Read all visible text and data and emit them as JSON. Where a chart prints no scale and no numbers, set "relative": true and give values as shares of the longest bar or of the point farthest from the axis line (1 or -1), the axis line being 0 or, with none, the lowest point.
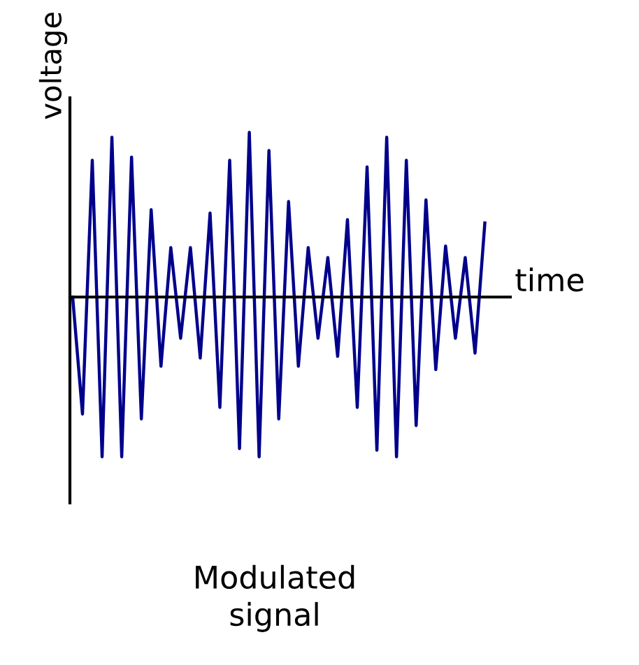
{
  "chart_data": {
    "type": "line",
    "title": "Modulated\nsignal",
    "xlabel": "time",
    "ylabel": "voltage",
    "relative": true,
    "categories": [
      null,
      null,
      null,
      null,
      null,
      null,
      null,
      null,
      null,
      null,
      null,
      null,
      null,
      null,
      null,
      null,
      null,
      null,
      null,
      null,
      null,
      null,
      null,
      null,
      null,
      null,
      null,
      null,
      null,
      null,
      null,
      null,
      null,
      null,
      null,
      null,
      null,
      null,
      null,
      null,
      null,
      null,
      null
    ],
    "series": [
      {
        "color": "#00008b",
        "values": [
          0,
          -0.71,
          0.83,
          -0.97,
          0.97,
          -0.97,
          0.85,
          -0.74,
          0.53,
          -0.42,
          0.3,
          -0.25,
          0.3,
          -0.37,
          0.51,
          -0.67,
          0.83,
          -0.92,
          1.0,
          -0.97,
          0.89,
          -0.74,
          0.58,
          -0.42,
          0.3,
          -0.25,
          0.24,
          -0.36,
          0.47,
          -0.67,
          0.79,
          -0.93,
          0.97,
          -0.97,
          0.83,
          -0.78,
          0.59,
          -0.44,
          0.31,
          -0.25,
          0.24,
          -0.34,
          0.45
        ]
      }
    ]
  }
}
